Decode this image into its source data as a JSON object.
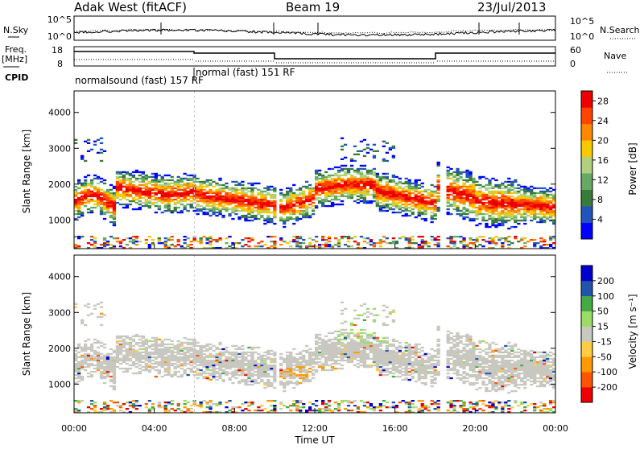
{
  "header": {
    "station": "Adak West (fitACF)",
    "beam": "Beam 19",
    "date": "23/Jul/2013"
  },
  "side_labels": {
    "nsky": "N.Sky",
    "nsearch": "N.Search",
    "freq_top": "Freq.",
    "freq_unit": "[MHz]",
    "nave": "Nave",
    "cpid": "CPID"
  },
  "noise_panel": {
    "left_ticks": [
      "10^5",
      "10^0"
    ],
    "right_ticks": [
      "10^5",
      "10^0"
    ]
  },
  "freq_panel": {
    "left_ticks": [
      "18",
      "8"
    ],
    "right_ticks": [
      "60",
      "0"
    ]
  },
  "cpid_labels": [
    {
      "text": "normalsound (fast) 157 RF"
    },
    {
      "text": "normal (fast) 151 RF"
    }
  ],
  "colors": {
    "power": [
      "#0000ff",
      "#2255bb",
      "#3a7a3a",
      "#66aa66",
      "#b0d080",
      "#f8c800",
      "#ff8800",
      "#ff4400",
      "#ee0000"
    ],
    "velocity": [
      "#ee0000",
      "#ff5500",
      "#ff9900",
      "#ffcc44",
      "#c8c8c0",
      "#99dd66",
      "#44aa44",
      "#2255aa",
      "#0000cc"
    ]
  },
  "chart_data": [
    {
      "type": "heatmap",
      "panel": "power",
      "ylabel": "Slant Range [km]",
      "ylim": [
        200,
        4600
      ],
      "yticks": [
        "1000",
        "2000",
        "3000",
        "4000"
      ],
      "colorbar_label": "Power [dB]",
      "colorbar_ticks": [
        "4",
        "8",
        "12",
        "16",
        "20",
        "24",
        "28"
      ],
      "colorbar_range": [
        0,
        30
      ]
    },
    {
      "type": "heatmap",
      "panel": "velocity",
      "ylabel": "Slant Range [km]",
      "ylim": [
        200,
        4600
      ],
      "yticks": [
        "1000",
        "2000",
        "3000",
        "4000"
      ],
      "colorbar_label": "Velocity [m s⁻¹]",
      "colorbar_ticks": [
        "-200",
        "-100",
        "-50",
        "-15",
        "15",
        "50",
        "100",
        "200"
      ]
    }
  ],
  "xaxis": {
    "label": "Time UT",
    "ticks": [
      "00:00",
      "04:00",
      "08:00",
      "12:00",
      "16:00",
      "20:00",
      "00:00"
    ]
  }
}
